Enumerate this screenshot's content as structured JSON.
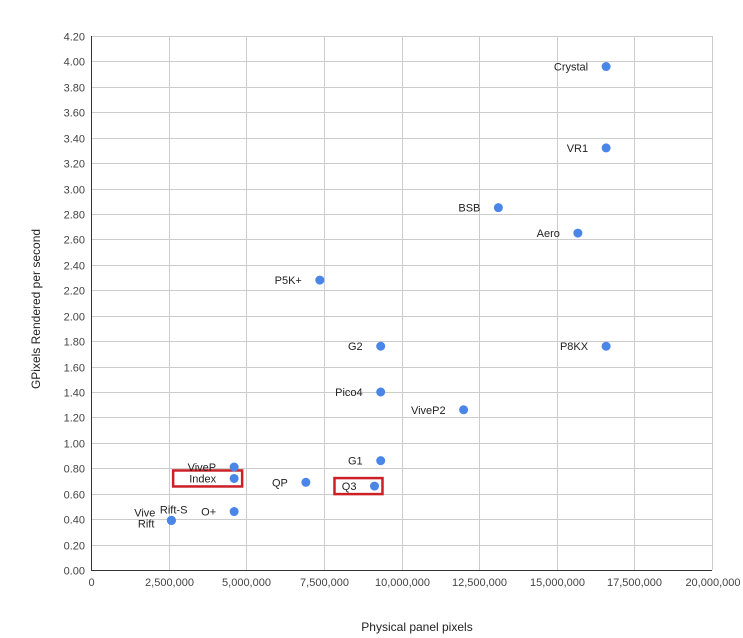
{
  "chart_data": {
    "type": "scatter",
    "title": "",
    "xlabel": "Physical panel pixels",
    "ylabel": "GPixels Rendered per second",
    "xlim": [
      0,
      20000000
    ],
    "ylim": [
      0,
      4.2
    ],
    "x_ticks": [
      0,
      2500000,
      5000000,
      7500000,
      10000000,
      12500000,
      15000000,
      17500000,
      20000000
    ],
    "x_tick_labels": [
      "0",
      "2,500,000",
      "5,000,000",
      "7,500,000",
      "10,000,000",
      "12,500,000",
      "15,000,000",
      "17,500,000",
      "20,000,000"
    ],
    "y_ticks": [
      0,
      0.2,
      0.4,
      0.6,
      0.8,
      1.0,
      1.2,
      1.4,
      1.6,
      1.8,
      2.0,
      2.2,
      2.4,
      2.6,
      2.8,
      3.0,
      3.2,
      3.4,
      3.6,
      3.8,
      4.0,
      4.2
    ],
    "y_tick_labels": [
      "0.00",
      "0.20",
      "0.40",
      "0.60",
      "0.80",
      "1.00",
      "1.20",
      "1.40",
      "1.60",
      "1.80",
      "2.00",
      "2.20",
      "2.40",
      "2.60",
      "2.80",
      "3.00",
      "3.20",
      "3.40",
      "3.60",
      "3.80",
      "4.00",
      "4.20"
    ],
    "grid": true,
    "legend": "none",
    "point_color": "#4a86e8",
    "highlight_color": "#cc1f26",
    "points": [
      {
        "label": "Crystal",
        "x": 16590000,
        "y": 3.96
      },
      {
        "label": "VR1",
        "x": 16590000,
        "y": 3.32
      },
      {
        "label": "BSB",
        "x": 13120000,
        "y": 2.85
      },
      {
        "label": "Aero",
        "x": 15680000,
        "y": 2.65
      },
      {
        "label": "P5K+",
        "x": 7370000,
        "y": 2.28
      },
      {
        "label": "G2",
        "x": 9330000,
        "y": 1.76
      },
      {
        "label": "P8KX",
        "x": 16590000,
        "y": 1.76
      },
      {
        "label": "Pico4",
        "x": 9330000,
        "y": 1.4
      },
      {
        "label": "ViveP2",
        "x": 12000000,
        "y": 1.26
      },
      {
        "label": "G1",
        "x": 9330000,
        "y": 0.86
      },
      {
        "label": "ViveP",
        "x": 4610000,
        "y": 0.81
      },
      {
        "label": "Index",
        "x": 4610000,
        "y": 0.72,
        "highlighted": true
      },
      {
        "label": "QP",
        "x": 6920000,
        "y": 0.69
      },
      {
        "label": "Q3",
        "x": 9130000,
        "y": 0.66,
        "highlighted": true
      },
      {
        "label": "O+",
        "x": 4610000,
        "y": 0.46
      },
      {
        "label": "Rift-S",
        "x": 2590000,
        "y": 0.39
      },
      {
        "label": "Vive",
        "x": 2590000,
        "y": 0.39
      },
      {
        "label": "Rift",
        "x": 2590000,
        "y": 0.39
      }
    ]
  }
}
